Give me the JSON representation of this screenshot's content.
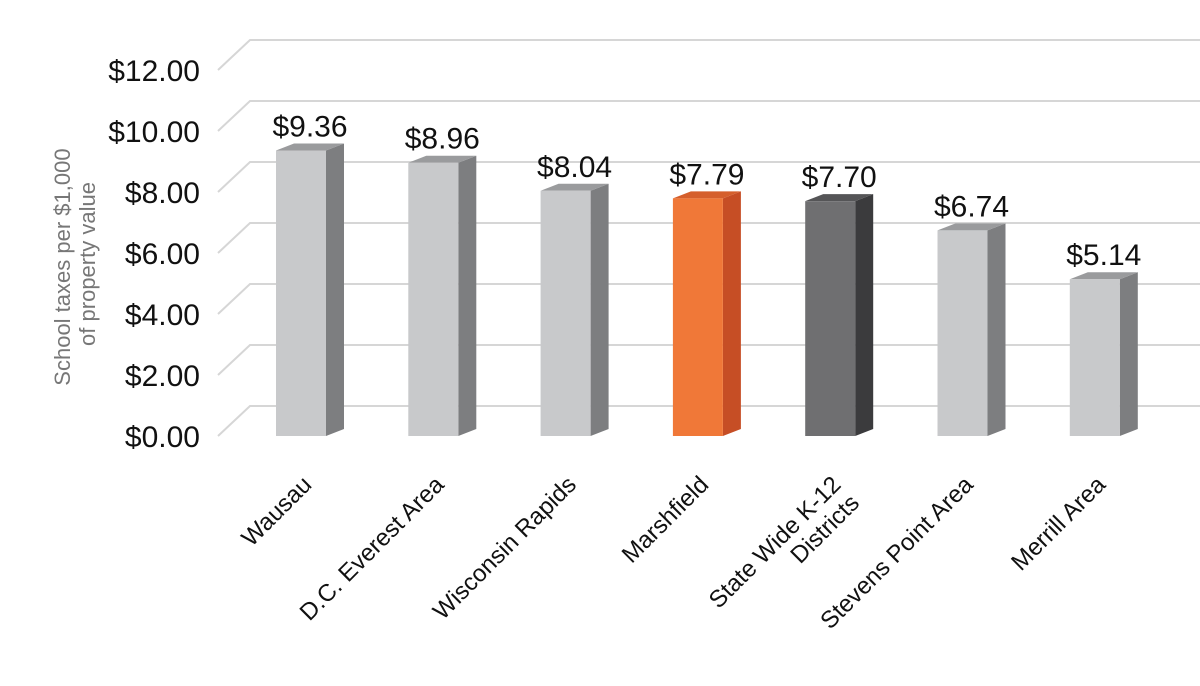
{
  "chart_data": {
    "type": "bar",
    "style": "3d-columns",
    "title": "",
    "ylabel": [
      "School taxes per $1,000",
      "of property value"
    ],
    "xlabel": "",
    "ylim": [
      0,
      12
    ],
    "yticks": [
      0,
      2,
      4,
      6,
      8,
      10,
      12
    ],
    "ytick_labels": [
      "$0.00",
      "$2.00",
      "$4.00",
      "$6.00",
      "$8.00",
      "$10.00",
      "$12.00"
    ],
    "grid": true,
    "categories": [
      [
        "Wausau"
      ],
      [
        "D.C. Everest Area"
      ],
      [
        "Wisconsin Rapids"
      ],
      [
        "Marshfield"
      ],
      [
        "State Wide K-12",
        "Districts"
      ],
      [
        "Stevens Point Area"
      ],
      [
        "Merrill Area"
      ]
    ],
    "values": [
      9.36,
      8.96,
      8.04,
      7.79,
      7.7,
      6.74,
      5.14
    ],
    "value_labels": [
      "$9.36",
      "$8.96",
      "$8.04",
      "$7.79",
      "$7.70",
      "$6.74",
      "$5.14"
    ],
    "colors": {
      "default": {
        "front": "#c8c9cb",
        "side": "#7d7e80",
        "top": "#9a9b9d"
      },
      "highlight": {
        "front": "#f07838",
        "side": "#c64e25",
        "top": "#d55f2c"
      },
      "statewide": {
        "front": "#6f6f71",
        "side": "#3b3b3d",
        "top": "#555557"
      },
      "grid": "#d6d6d6",
      "axis_text": "#111111",
      "ylabel_text": "#777777"
    },
    "bar_color_keys": [
      "default",
      "default",
      "default",
      "highlight",
      "statewide",
      "default",
      "default"
    ]
  }
}
